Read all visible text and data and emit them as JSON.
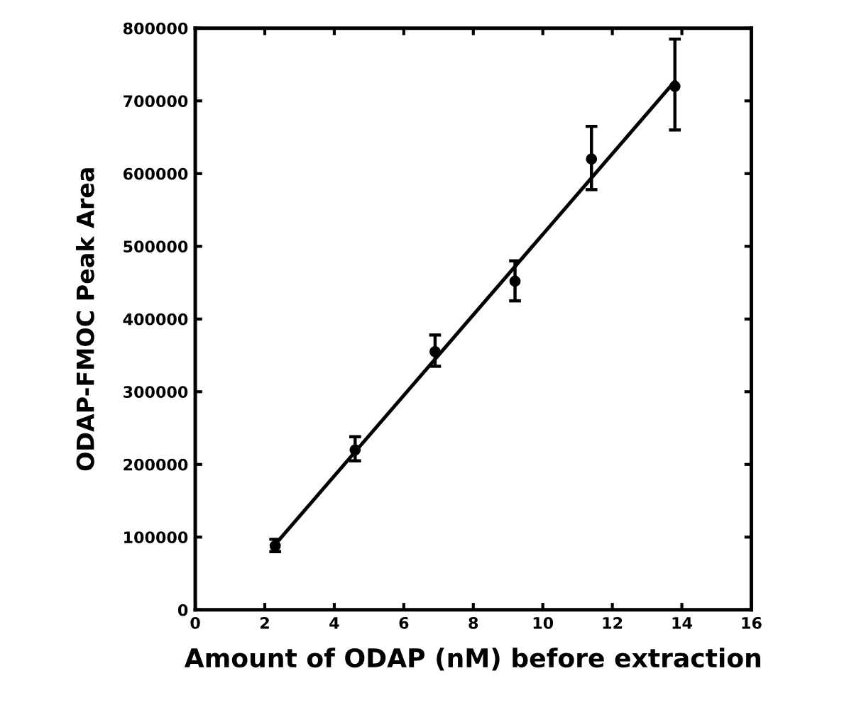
{
  "chart_data": {
    "type": "scatter",
    "xlabel": "Amount of ODAP (nM) before extraction",
    "ylabel": "ODAP-FMOC Peak Area",
    "xlim": [
      0,
      16
    ],
    "xticks": [
      0,
      2,
      4,
      6,
      8,
      10,
      12,
      14,
      16
    ],
    "ylim": [
      0,
      800000
    ],
    "yticks": [
      0,
      100000,
      200000,
      300000,
      400000,
      500000,
      600000,
      700000,
      800000
    ],
    "grid": false,
    "marker": "circle",
    "series": [
      {
        "color": "#000000",
        "x": [
          2.3,
          4.6,
          6.9,
          9.2,
          11.4,
          13.8
        ],
        "values": [
          88000,
          220000,
          355000,
          452000,
          620000,
          720000
        ],
        "errors": [
          [
            80000,
            97000
          ],
          [
            205000,
            238000
          ],
          [
            335000,
            378000
          ],
          [
            425000,
            480000
          ],
          [
            578000,
            665000
          ],
          [
            660000,
            785000
          ]
        ]
      },
      {
        "type": "line",
        "color": "#000000",
        "x": [
          2.3,
          13.8
        ],
        "values": [
          90000,
          727000
        ],
        "marker": "none",
        "line_style": "solid"
      }
    ]
  }
}
